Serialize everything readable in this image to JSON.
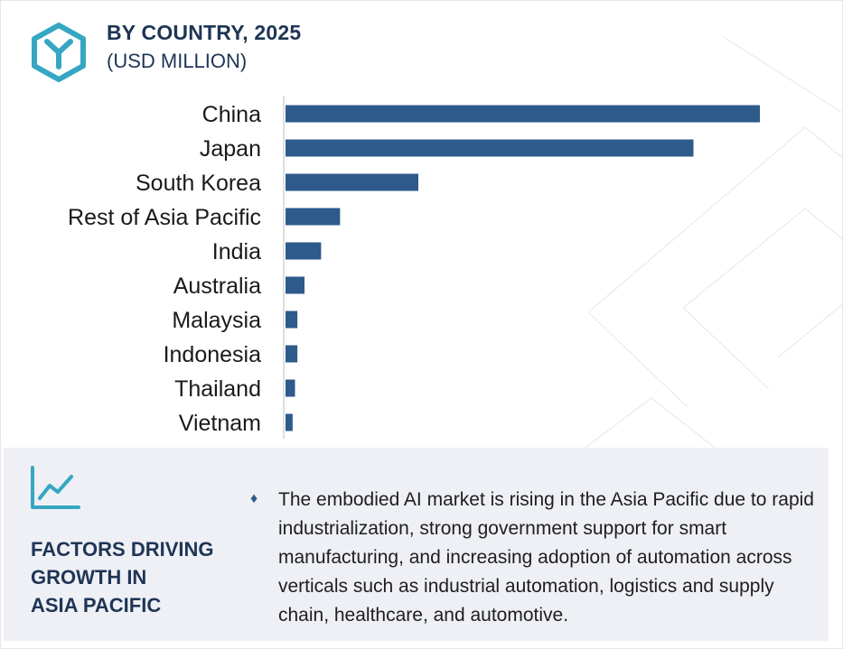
{
  "header": {
    "title": "BY COUNTRY, 2025",
    "subtitle": "(USD MILLION)"
  },
  "icons": {
    "logo": "hexagon-y-logo-icon",
    "trend": "line-chart-trend-icon",
    "bullet": "diamond-bullet-icon"
  },
  "colors": {
    "bar": "#2e5a8c",
    "title": "#1f3556",
    "logo": "#35a7c2",
    "panel": "#eef0f5"
  },
  "chart_data": {
    "type": "bar",
    "orientation": "horizontal",
    "categories": [
      "China",
      "Japan",
      "South Korea",
      "Rest of Asia Pacific",
      "India",
      "Australia",
      "Malaysia",
      "Indonesia",
      "Thailand",
      "Vietnam"
    ],
    "values": [
      100,
      86,
      28,
      11.5,
      7.5,
      4,
      2.5,
      2.5,
      2,
      1.5
    ],
    "xlim": [
      0,
      100
    ],
    "grid": false,
    "legend": "none"
  },
  "factors": {
    "bullet": "♦",
    "title_lines": [
      "FACTORS DRIVING",
      "GROWTH IN",
      "ASIA PACIFIC"
    ],
    "text": "The embodied AI market is rising in the Asia Pacific due to rapid industrialization, strong government support for smart manufacturing, and increasing adoption of automation across verticals such as industrial automation, logistics and supply chain, healthcare, and automotive."
  }
}
